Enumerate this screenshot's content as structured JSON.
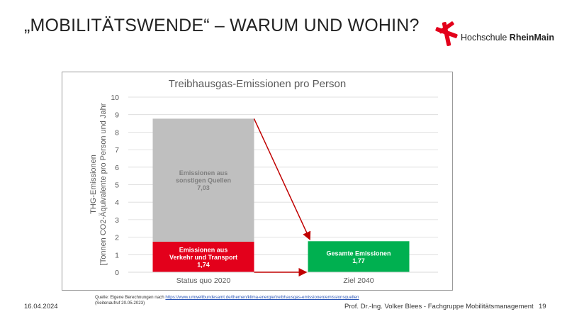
{
  "slide": {
    "title": "„MOBILITÄTSWENDE“ – WARUM UND WOHIN?",
    "logo_text_light": "Hochschule ",
    "logo_text_bold": "RheinMain",
    "date": "16.04.2024",
    "author": "Prof. Dr.-Ing. Volker Blees - Fachgruppe Mobilitätsmanagement",
    "page_number": "19",
    "source_prefix": "Quelle: Eigene Berechnungen nach ",
    "source_link": "https://www.umweltbundesamt.de/themen/klima-energie/treibhausgas-emissionen/emissionsquellen",
    "source_access": "(Seitenaufruf 20.05.2023)"
  },
  "colors": {
    "transport": "#e3001b",
    "other": "#bfbfbf",
    "target": "#00b050",
    "arrow": "#c00000",
    "logo": "#e3001b"
  },
  "chart_data": {
    "type": "bar",
    "stacked": true,
    "title": "Treibhausgas-Emissionen pro Person",
    "ylabel_line1": "THG-Emissionen",
    "ylabel_line2": "[Tonnen CO2-Äquivalente pro Person und Jahr",
    "ylim": [
      0,
      10
    ],
    "yticks": [
      0,
      1,
      2,
      3,
      4,
      5,
      6,
      7,
      8,
      9,
      10
    ],
    "grid": true,
    "categories": [
      "Status quo 2020",
      "Ziel 2040"
    ],
    "series": [
      {
        "name": "Emissionen aus Verkehr und Transport",
        "values": [
          1.74,
          null
        ],
        "label_lines": [
          "Emissionen aus",
          "Verkehr und Transport"
        ],
        "value_label": "1,74",
        "color": "#e3001b"
      },
      {
        "name": "Emissionen aus sonstigen Quellen",
        "values": [
          7.03,
          null
        ],
        "label_lines": [
          "Emissionen aus",
          "sonstigen Quellen"
        ],
        "value_label": "7,03",
        "color": "#bfbfbf"
      },
      {
        "name": "Gesamte Emissionen",
        "values": [
          null,
          1.77
        ],
        "label_lines": [
          "Gesamte Emissionen"
        ],
        "value_label": "1,77",
        "color": "#00b050"
      }
    ]
  }
}
